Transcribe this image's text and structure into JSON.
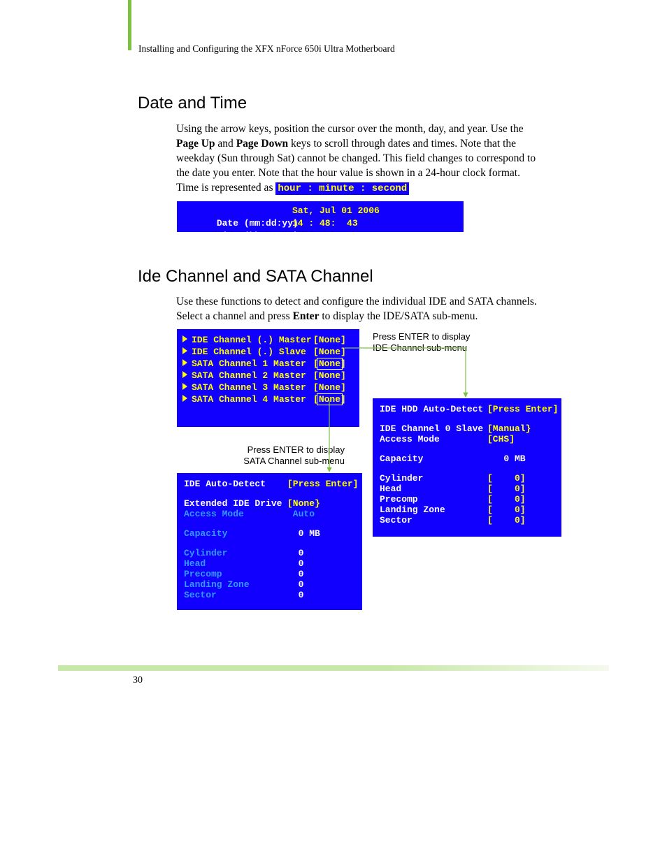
{
  "colors": {
    "accent_green": "#7cc142",
    "bios_blue": "#1200ff",
    "bios_yellow": "#ffff00",
    "bios_white": "#ffffff",
    "bios_cyan": "#3399ff",
    "body_text": "#000000",
    "footer_gradient_start": "#c8e8a8",
    "footer_gradient_end": "#f4f9ed"
  },
  "header": {
    "running_title": "Installing and Configuring the XFX nForce 650i Ultra Motherboard"
  },
  "section1": {
    "heading": "Date and Time",
    "paragraph_html": "Using the arrow keys, position the cursor over the month, day, and year. Use the <b>Page Up</b> and <b>Page Down</b> keys to scroll through dates and times. Note that the weekday (Sun through Sat) cannot be changed. This field changes to correspond to the date you enter. Note that the hour value is shown in a 24-hour clock format. Time is represented as ",
    "inline_code": "hour : minute : second",
    "bios": {
      "date_label": "Date (mm:dd:yy)",
      "date_value": "Sat, Jul 01 2006",
      "time_label": "Time (hh:mm:ss)",
      "time_value": "14 : 48:  43"
    }
  },
  "section2": {
    "heading": "Ide Channel and SATA Channel",
    "paragraph_html": "Use these functions to detect and configure the individual IDE and SATA channels. Select a channel and press <b>Enter</b> to display the IDE/SATA sub-menu."
  },
  "channels_box": {
    "rows": [
      {
        "label": "IDE Channel (.) Master",
        "value": "[None]",
        "highlight": false
      },
      {
        "label": "IDE Channel (.) Slave",
        "value": "[None]",
        "highlight": false
      },
      {
        "label": "SATA Channel 1 Master",
        "value": "[None]",
        "highlight": true
      },
      {
        "label": "SATA Channel 2 Master",
        "value": "[None]",
        "highlight": false
      },
      {
        "label": "SATA Channel 3 Master",
        "value": "[None]",
        "highlight": false
      },
      {
        "label": "SATA Channel 4 Master",
        "value": "[None]",
        "highlight": true
      }
    ]
  },
  "callout1": {
    "line1": "Press ENTER to display",
    "line2": "IDE Channel sub-menu"
  },
  "callout2": {
    "line1": "Press ENTER to display",
    "line2": "SATA Channel sub-menu"
  },
  "ide_submenu": {
    "rows": [
      {
        "label": "IDE HDD Auto-Detect",
        "value": "[Press Enter]",
        "value_color": "yellow"
      },
      {
        "spacer": true
      },
      {
        "label": "IDE Channel 0 Slave",
        "value": "[Manual}",
        "value_color": "yellow"
      },
      {
        "label": "Access Mode",
        "value": "[CHS]",
        "value_color": "yellow"
      },
      {
        "spacer": true
      },
      {
        "label": "Capacity",
        "value": "   0 MB",
        "value_color": "white"
      },
      {
        "spacer": true
      },
      {
        "label": "Cylinder",
        "value": "[    0]",
        "value_color": "yellow"
      },
      {
        "label": "Head",
        "value": "[    0]",
        "value_color": "yellow"
      },
      {
        "label": "Precomp",
        "value": "[    0]",
        "value_color": "yellow"
      },
      {
        "label": "Landing Zone",
        "value": "[    0]",
        "value_color": "yellow"
      },
      {
        "label": "Sector",
        "value": "[    0]",
        "value_color": "yellow"
      }
    ]
  },
  "sata_submenu": {
    "rows": [
      {
        "label": "IDE Auto-Detect",
        "value": "[Press Enter]",
        "value_color": "yellow"
      },
      {
        "spacer": true
      },
      {
        "label": "Extended IDE Drive",
        "value": "[None}",
        "value_color": "yellow"
      },
      {
        "label": "Access Mode",
        "value": " Auto",
        "value_color": "cyan",
        "label_color": "cyan"
      },
      {
        "spacer": true
      },
      {
        "label": "Capacity",
        "value": "  0 MB",
        "value_color": "white",
        "label_color": "cyan"
      },
      {
        "spacer": true
      },
      {
        "label": "Cylinder",
        "value": "  0",
        "value_color": "white",
        "label_color": "cyan"
      },
      {
        "label": "Head",
        "value": "  0",
        "value_color": "white",
        "label_color": "cyan"
      },
      {
        "label": "Precomp",
        "value": "  0",
        "value_color": "white",
        "label_color": "cyan"
      },
      {
        "label": "Landing Zone",
        "value": "  0",
        "value_color": "white",
        "label_color": "cyan"
      },
      {
        "label": "Sector",
        "value": "  0",
        "value_color": "white",
        "label_color": "cyan"
      }
    ]
  },
  "footer": {
    "page_number": "30"
  }
}
